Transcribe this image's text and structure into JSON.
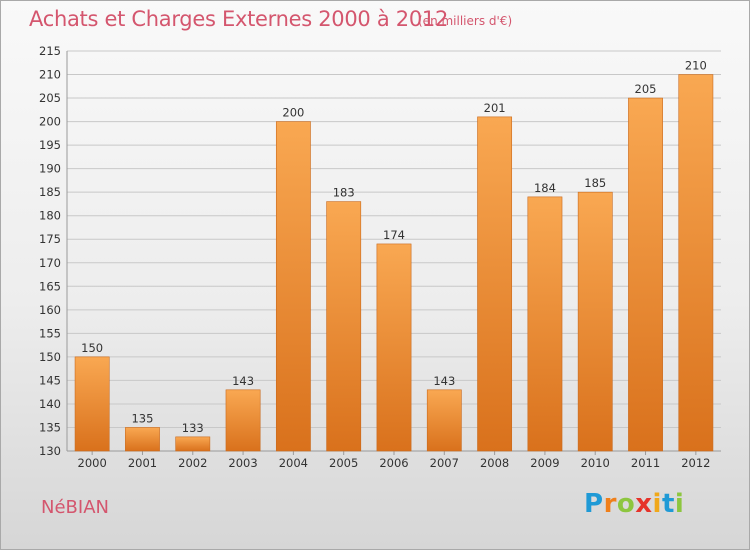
{
  "chart_data": {
    "type": "bar",
    "title": "Achats et Charges Externes 2000 à 2012",
    "unit_note": "(en milliers d'€)",
    "categories": [
      "2000",
      "2001",
      "2002",
      "2003",
      "2004",
      "2005",
      "2006",
      "2007",
      "2008",
      "2009",
      "2010",
      "2011",
      "2012"
    ],
    "values": [
      150,
      135,
      133,
      143,
      200,
      183,
      174,
      143,
      201,
      184,
      185,
      205,
      210
    ],
    "ylim": [
      130,
      215
    ],
    "yticks": [
      130,
      135,
      140,
      145,
      150,
      155,
      160,
      165,
      170,
      175,
      180,
      185,
      190,
      195,
      200,
      205,
      210,
      215
    ],
    "grid": true,
    "legend": "none",
    "bar_color": "#f4a14a"
  },
  "location": "NéBIAN",
  "logo": {
    "letters": [
      "P",
      "r",
      "o",
      "x",
      "i",
      "t",
      "i"
    ],
    "colors": [
      "#1f9ad6",
      "#f07f1a",
      "#8dc63f",
      "#e6332a",
      "#f0a81a",
      "#1f9ad6",
      "#8dc63f"
    ]
  }
}
